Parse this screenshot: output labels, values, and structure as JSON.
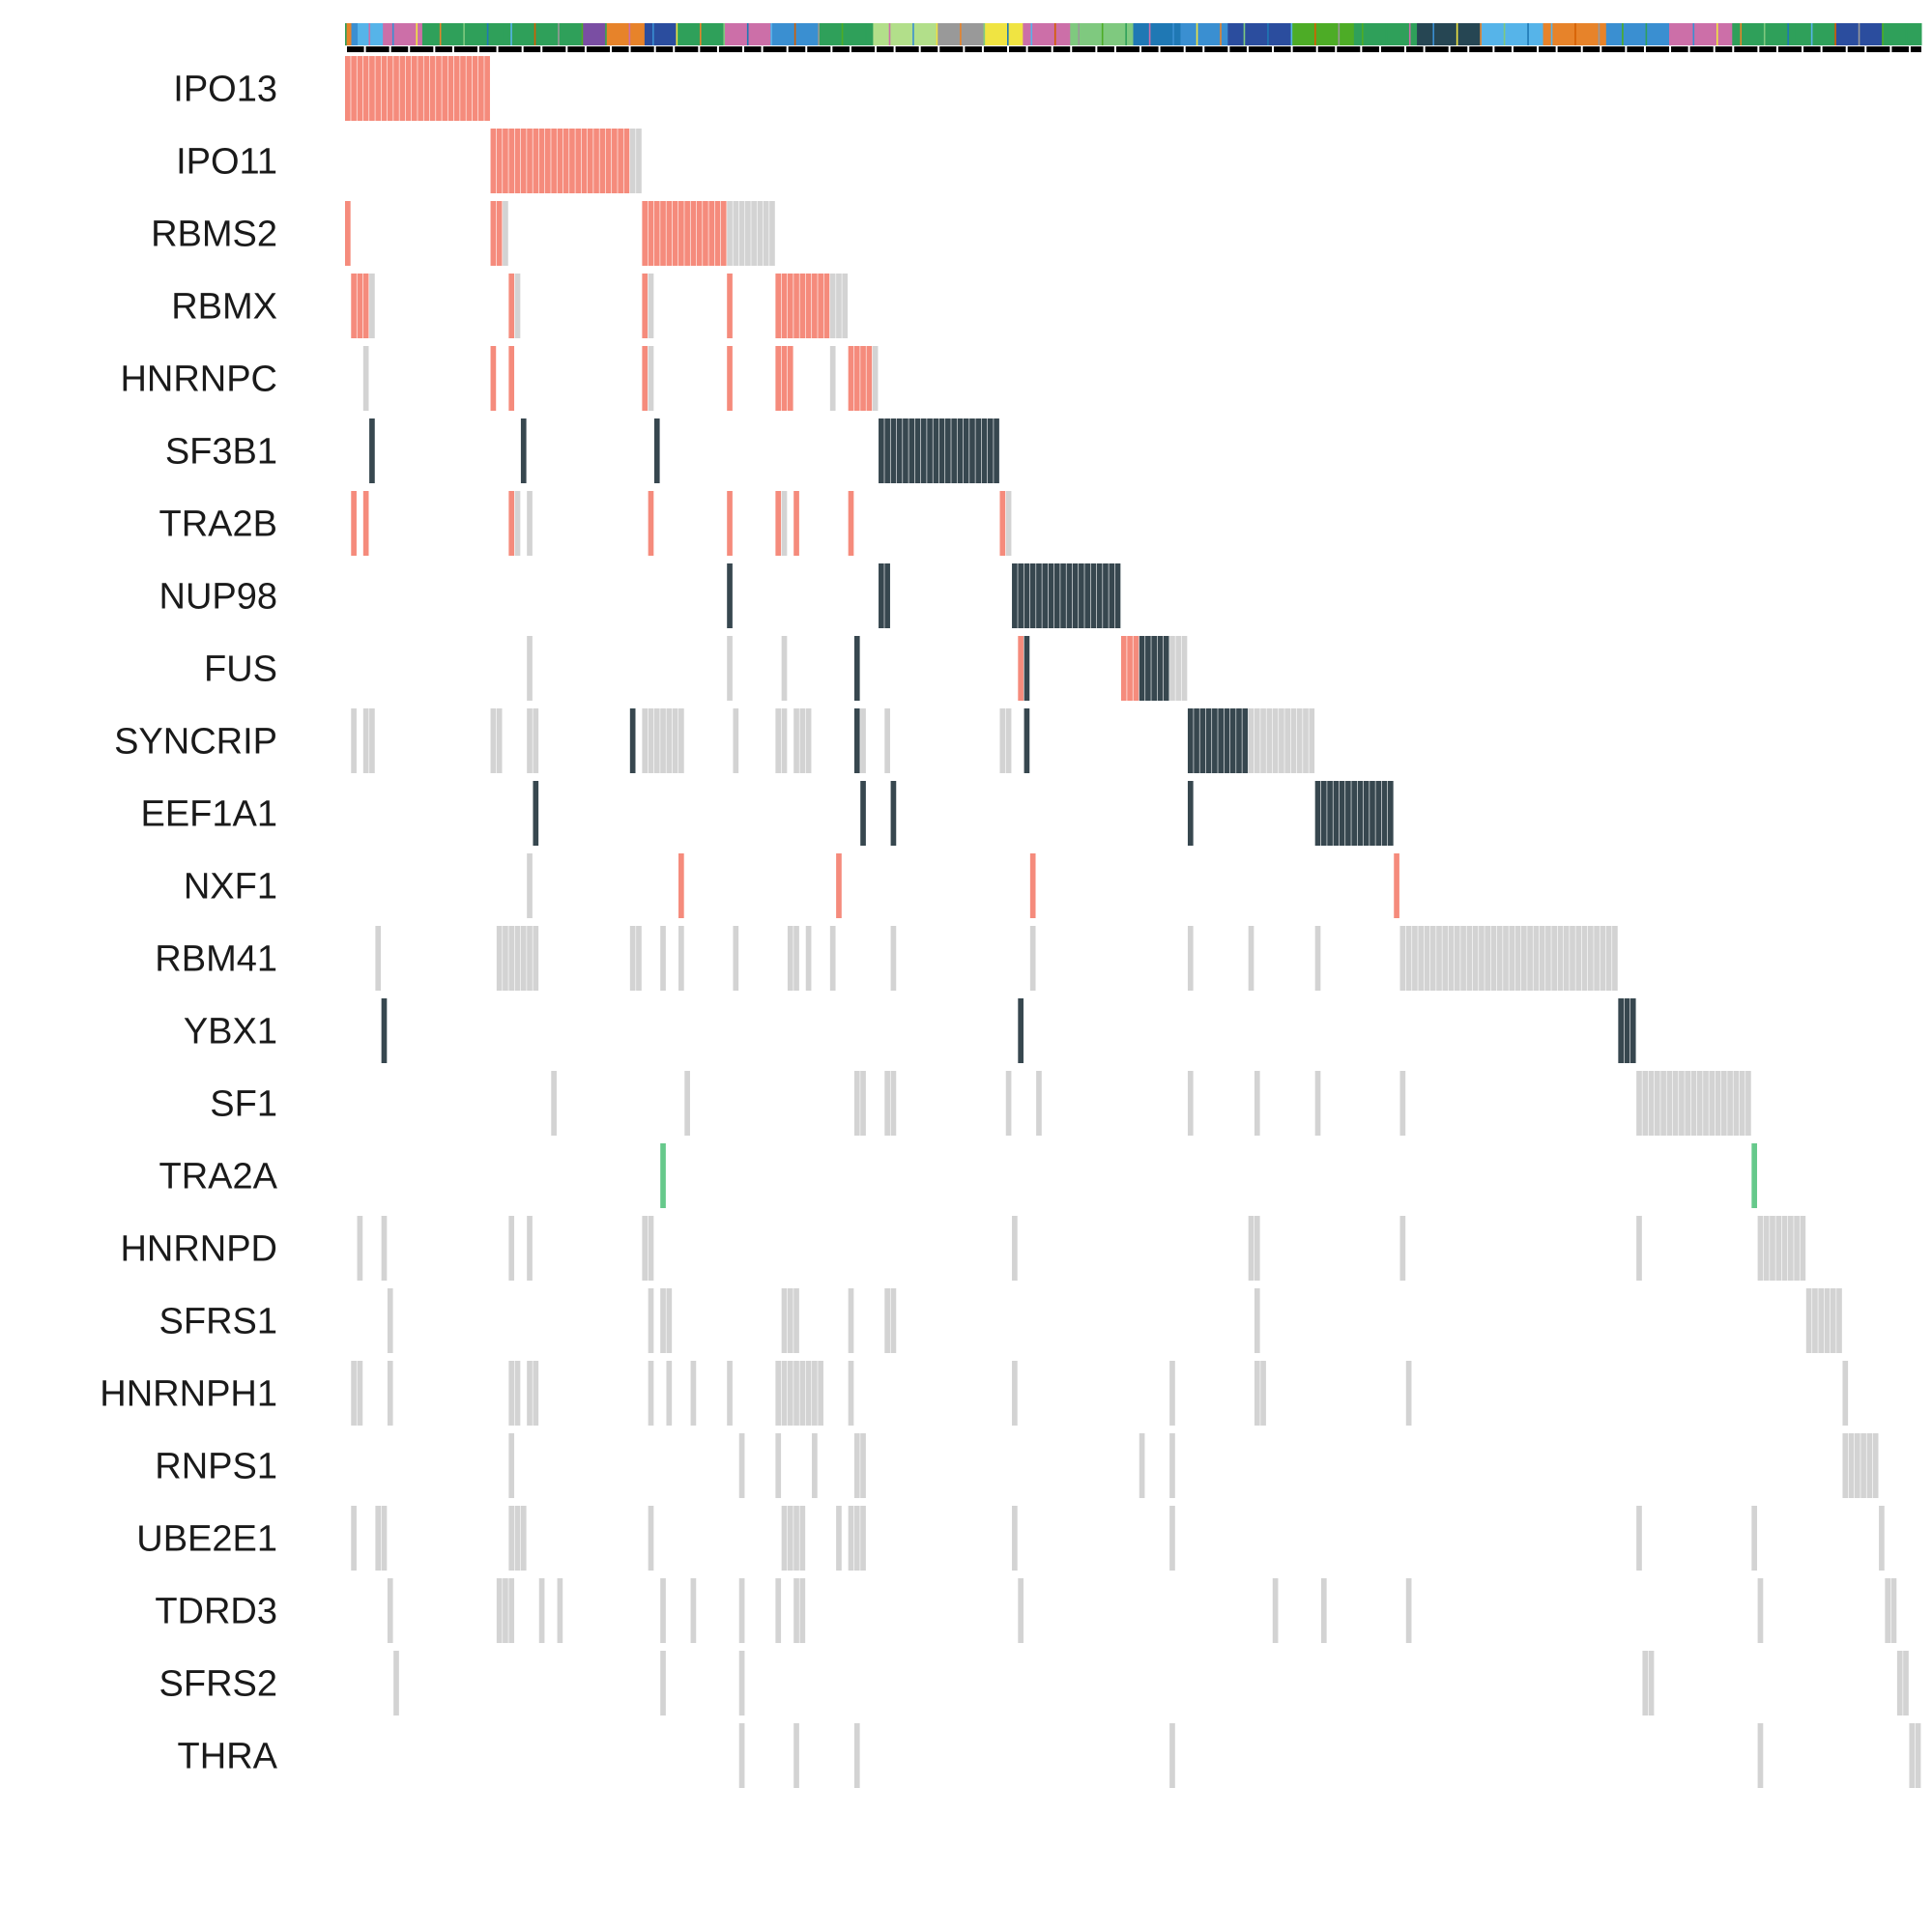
{
  "chart_data": {
    "type": "heatmap",
    "subtype": "oncoprint",
    "title": "",
    "xlabel": "",
    "ylabel": "",
    "n_samples": 260,
    "genes": [
      "IPO13",
      "IPO11",
      "RBMS2",
      "RBMX",
      "HNRNPC",
      "SF3B1",
      "TRA2B",
      "NUP98",
      "FUS",
      "SYNCRIP",
      "EEF1A1",
      "NXF1",
      "RBM41",
      "YBX1",
      "SF1",
      "TRA2A",
      "HNRNPD",
      "SFRS1",
      "HNRNPH1",
      "RNPS1",
      "UBE2E1",
      "TDRD3",
      "SFRS2",
      "THRA"
    ],
    "colors": {
      "salmon": "#f58b7c",
      "gray": "#d3d3d3",
      "dark": "#37474f",
      "green": "#66c98b",
      "annotation_black": "#000000"
    },
    "annotation_palette": [
      "#2fa05a",
      "#cc6fa8",
      "#3a8fd1",
      "#2b4d9e",
      "#f0e442",
      "#e7832a",
      "#7fc97f",
      "#b2df8a",
      "#1f78b4",
      "#56b4e9",
      "#d55e00",
      "#7a4ea3",
      "#999999",
      "#4dac26",
      "#264653"
    ],
    "annotation_segments": [
      [
        0,
        4,
        5
      ],
      [
        4,
        8,
        2
      ],
      [
        8,
        24,
        9
      ],
      [
        24,
        49,
        1
      ],
      [
        49,
        73,
        0
      ],
      [
        73,
        100,
        0
      ],
      [
        100,
        150,
        0
      ],
      [
        150,
        165,
        11
      ],
      [
        165,
        190,
        5
      ],
      [
        190,
        210,
        3
      ],
      [
        210,
        240,
        0
      ],
      [
        240,
        270,
        1
      ],
      [
        270,
        300,
        2
      ],
      [
        300,
        335,
        0
      ],
      [
        335,
        375,
        7
      ],
      [
        375,
        405,
        12
      ],
      [
        405,
        430,
        4
      ],
      [
        430,
        460,
        1
      ],
      [
        460,
        500,
        6
      ],
      [
        500,
        530,
        8
      ],
      [
        530,
        560,
        2
      ],
      [
        560,
        600,
        3
      ],
      [
        600,
        640,
        13
      ],
      [
        640,
        680,
        0
      ],
      [
        680,
        720,
        14
      ],
      [
        720,
        760,
        9
      ],
      [
        760,
        800,
        5
      ],
      [
        800,
        840,
        2
      ],
      [
        840,
        880,
        1
      ],
      [
        880,
        920,
        0
      ],
      [
        920,
        945,
        0
      ],
      [
        945,
        975,
        3
      ],
      [
        975,
        1000,
        0
      ]
    ],
    "gene_data": [
      {
        "gene": "IPO13",
        "salmon": [
          [
            0,
            24
          ]
        ]
      },
      {
        "gene": "IPO11",
        "salmon": [
          [
            24,
            47
          ]
        ],
        "gray": [
          [
            47,
            49
          ]
        ]
      },
      {
        "gene": "RBMS2",
        "salmon": [
          [
            0,
            1
          ],
          [
            24,
            26
          ],
          [
            49,
            63
          ]
        ],
        "gray": [
          [
            26,
            27
          ],
          [
            63,
            71
          ]
        ]
      },
      {
        "gene": "RBMX",
        "salmon": [
          [
            1,
            4
          ],
          [
            27,
            28
          ],
          [
            49,
            50
          ],
          [
            63,
            64
          ],
          [
            71,
            80
          ]
        ],
        "gray": [
          [
            4,
            5
          ],
          [
            28,
            29
          ],
          [
            50,
            51
          ],
          [
            80,
            83
          ]
        ]
      },
      {
        "gene": "HNRNPC",
        "salmon": [
          [
            24,
            25
          ],
          [
            27,
            28
          ],
          [
            49,
            50
          ],
          [
            63,
            64
          ],
          [
            71,
            74
          ],
          [
            83,
            87
          ]
        ],
        "gray": [
          [
            3,
            4
          ],
          [
            50,
            51
          ],
          [
            80,
            81
          ],
          [
            87,
            88
          ]
        ]
      },
      {
        "gene": "SF3B1",
        "dark": [
          [
            4,
            5
          ],
          [
            29,
            30
          ],
          [
            51,
            52
          ],
          [
            88,
            108
          ]
        ]
      },
      {
        "gene": "TRA2B",
        "salmon": [
          [
            1,
            2
          ],
          [
            3,
            4
          ],
          [
            27,
            28
          ],
          [
            50,
            51
          ],
          [
            63,
            64
          ],
          [
            71,
            72
          ],
          [
            74,
            75
          ],
          [
            83,
            84
          ],
          [
            108,
            109
          ]
        ],
        "gray": [
          [
            28,
            29
          ],
          [
            30,
            31
          ],
          [
            72,
            73
          ],
          [
            109,
            110
          ]
        ]
      },
      {
        "gene": "NUP98",
        "dark": [
          [
            63,
            64
          ],
          [
            88,
            90
          ],
          [
            110,
            128
          ]
        ]
      },
      {
        "gene": "FUS",
        "salmon": [
          [
            111,
            112
          ],
          [
            128,
            131
          ]
        ],
        "dark": [
          [
            84,
            85
          ],
          [
            112,
            113
          ],
          [
            131,
            136
          ]
        ],
        "gray": [
          [
            30,
            31
          ],
          [
            63,
            64
          ],
          [
            72,
            73
          ],
          [
            136,
            139
          ]
        ]
      },
      {
        "gene": "SYNCRIP",
        "dark": [
          [
            47,
            48
          ],
          [
            84,
            85
          ],
          [
            112,
            113
          ],
          [
            139,
            149
          ]
        ],
        "gray": [
          [
            1,
            2
          ],
          [
            3,
            5
          ],
          [
            24,
            26
          ],
          [
            30,
            32
          ],
          [
            49,
            52
          ],
          [
            52,
            56
          ],
          [
            64,
            65
          ],
          [
            71,
            73
          ],
          [
            74,
            77
          ],
          [
            85,
            86
          ],
          [
            89,
            90
          ],
          [
            108,
            110
          ],
          [
            149,
            160
          ]
        ]
      },
      {
        "gene": "EEF1A1",
        "dark": [
          [
            31,
            32
          ],
          [
            85,
            86
          ],
          [
            90,
            91
          ],
          [
            139,
            140
          ],
          [
            160,
            173
          ]
        ]
      },
      {
        "gene": "NXF1",
        "salmon": [
          [
            55,
            56
          ],
          [
            81,
            82
          ],
          [
            113,
            114
          ],
          [
            173,
            174
          ]
        ],
        "gray": [
          [
            30,
            31
          ]
        ]
      },
      {
        "gene": "RBM41",
        "gray": [
          [
            5,
            6
          ],
          [
            25,
            32
          ],
          [
            47,
            49
          ],
          [
            52,
            53
          ],
          [
            55,
            56
          ],
          [
            64,
            65
          ],
          [
            73,
            75
          ],
          [
            76,
            77
          ],
          [
            80,
            81
          ],
          [
            90,
            91
          ],
          [
            113,
            114
          ],
          [
            139,
            140
          ],
          [
            149,
            150
          ],
          [
            160,
            161
          ],
          [
            174,
            210
          ]
        ]
      },
      {
        "gene": "YBX1",
        "dark": [
          [
            6,
            7
          ],
          [
            111,
            112
          ],
          [
            210,
            213
          ]
        ]
      },
      {
        "gene": "SF1",
        "gray": [
          [
            34,
            35
          ],
          [
            56,
            57
          ],
          [
            84,
            86
          ],
          [
            89,
            91
          ],
          [
            109,
            110
          ],
          [
            114,
            115
          ],
          [
            139,
            140
          ],
          [
            150,
            151
          ],
          [
            160,
            161
          ],
          [
            174,
            175
          ],
          [
            213,
            232
          ]
        ]
      },
      {
        "gene": "TRA2A",
        "green": [
          [
            52,
            53
          ],
          [
            232,
            233
          ]
        ]
      },
      {
        "gene": "HNRNPD",
        "gray": [
          [
            2,
            3
          ],
          [
            6,
            7
          ],
          [
            27,
            28
          ],
          [
            30,
            31
          ],
          [
            49,
            51
          ],
          [
            110,
            111
          ],
          [
            149,
            151
          ],
          [
            174,
            175
          ],
          [
            213,
            214
          ],
          [
            233,
            241
          ]
        ]
      },
      {
        "gene": "SFRS1",
        "gray": [
          [
            7,
            8
          ],
          [
            50,
            51
          ],
          [
            52,
            54
          ],
          [
            72,
            75
          ],
          [
            83,
            84
          ],
          [
            89,
            91
          ],
          [
            150,
            151
          ],
          [
            241,
            247
          ]
        ]
      },
      {
        "gene": "HNRNPH1",
        "gray": [
          [
            1,
            3
          ],
          [
            7,
            8
          ],
          [
            27,
            29
          ],
          [
            30,
            32
          ],
          [
            50,
            51
          ],
          [
            53,
            54
          ],
          [
            57,
            58
          ],
          [
            63,
            64
          ],
          [
            71,
            79
          ],
          [
            83,
            84
          ],
          [
            110,
            111
          ],
          [
            136,
            137
          ],
          [
            150,
            152
          ],
          [
            175,
            176
          ],
          [
            247,
            248
          ]
        ]
      },
      {
        "gene": "RNPS1",
        "gray": [
          [
            27,
            28
          ],
          [
            65,
            66
          ],
          [
            71,
            72
          ],
          [
            77,
            78
          ],
          [
            84,
            86
          ],
          [
            131,
            132
          ],
          [
            136,
            137
          ],
          [
            247,
            253
          ]
        ]
      },
      {
        "gene": "UBE2E1",
        "gray": [
          [
            1,
            2
          ],
          [
            5,
            7
          ],
          [
            27,
            30
          ],
          [
            50,
            51
          ],
          [
            72,
            76
          ],
          [
            81,
            82
          ],
          [
            83,
            86
          ],
          [
            110,
            111
          ],
          [
            136,
            137
          ],
          [
            213,
            214
          ],
          [
            232,
            233
          ],
          [
            253,
            254
          ]
        ]
      },
      {
        "gene": "TDRD3",
        "gray": [
          [
            7,
            8
          ],
          [
            25,
            28
          ],
          [
            32,
            33
          ],
          [
            35,
            36
          ],
          [
            52,
            53
          ],
          [
            57,
            58
          ],
          [
            65,
            66
          ],
          [
            71,
            72
          ],
          [
            74,
            76
          ],
          [
            111,
            112
          ],
          [
            153,
            154
          ],
          [
            161,
            162
          ],
          [
            175,
            176
          ],
          [
            233,
            234
          ],
          [
            254,
            256
          ]
        ]
      },
      {
        "gene": "SFRS2",
        "gray": [
          [
            8,
            9
          ],
          [
            52,
            53
          ],
          [
            65,
            66
          ],
          [
            214,
            216
          ],
          [
            256,
            258
          ]
        ]
      },
      {
        "gene": "THRA",
        "gray": [
          [
            65,
            66
          ],
          [
            74,
            75
          ],
          [
            84,
            85
          ],
          [
            136,
            137
          ],
          [
            233,
            234
          ],
          [
            258,
            260
          ]
        ]
      }
    ]
  }
}
